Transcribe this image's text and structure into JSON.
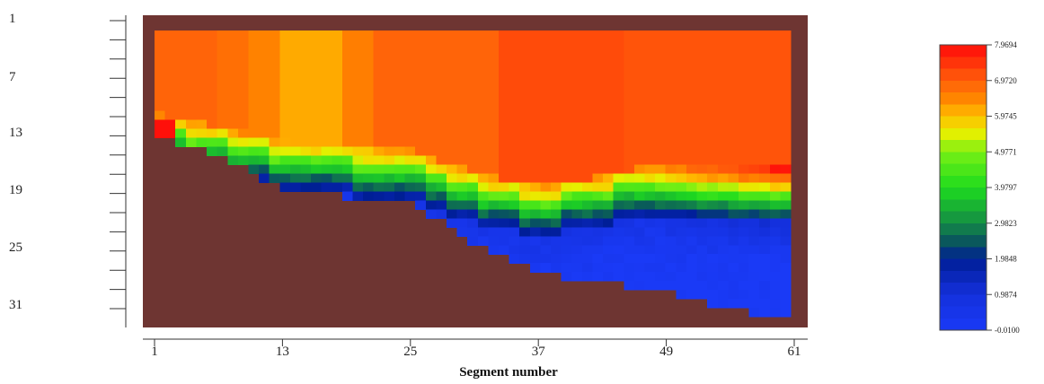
{
  "chart_data": {
    "type": "heatmap",
    "title": "",
    "xlabel": "Segment number",
    "ylabel": "",
    "x_ticks": [
      "1",
      "13",
      "25",
      "37",
      "49",
      "61"
    ],
    "y_ticks": [
      "1",
      "7",
      "13",
      "19",
      "25",
      "31"
    ],
    "x_range": [
      1,
      61
    ],
    "y_range": [
      1,
      33
    ],
    "colorbar": {
      "labels": [
        "7.9694",
        "6.9720",
        "5.9745",
        "4.9771",
        "3.9797",
        "2.9823",
        "1.9848",
        "0.9874",
        "-0.0100"
      ],
      "min": -0.01,
      "max": 7.9694,
      "colors": [
        "#ff1a10",
        "#ff6000",
        "#ffa000",
        "#f0f000",
        "#20ee10",
        "#108a50",
        "#0020a0",
        "#1a3ef4",
        "#1a40f4"
      ]
    },
    "background_color": "#6e3532",
    "approx_surface_value": 6.9,
    "bed_profile_approx": [
      {
        "segment": 1,
        "bed_layer": 12
      },
      {
        "segment": 7,
        "bed_layer": 14
      },
      {
        "segment": 13,
        "bed_layer": 18
      },
      {
        "segment": 25,
        "bed_layer": 19
      },
      {
        "segment": 30,
        "bed_layer": 23
      },
      {
        "segment": 37,
        "bed_layer": 27
      },
      {
        "segment": 49,
        "bed_layer": 29
      },
      {
        "segment": 55,
        "bed_layer": 31
      },
      {
        "segment": 61,
        "bed_layer": 32
      }
    ],
    "interface_profile_approx": [
      {
        "segment": 1,
        "layer": 11
      },
      {
        "segment": 13,
        "layer": 14
      },
      {
        "segment": 25,
        "layer": 15
      },
      {
        "segment": 30,
        "layer": 17
      },
      {
        "segment": 37,
        "layer": 19
      },
      {
        "segment": 43,
        "layer": 18
      },
      {
        "segment": 47,
        "layer": 17
      },
      {
        "segment": 61,
        "layer": 17
      }
    ]
  }
}
